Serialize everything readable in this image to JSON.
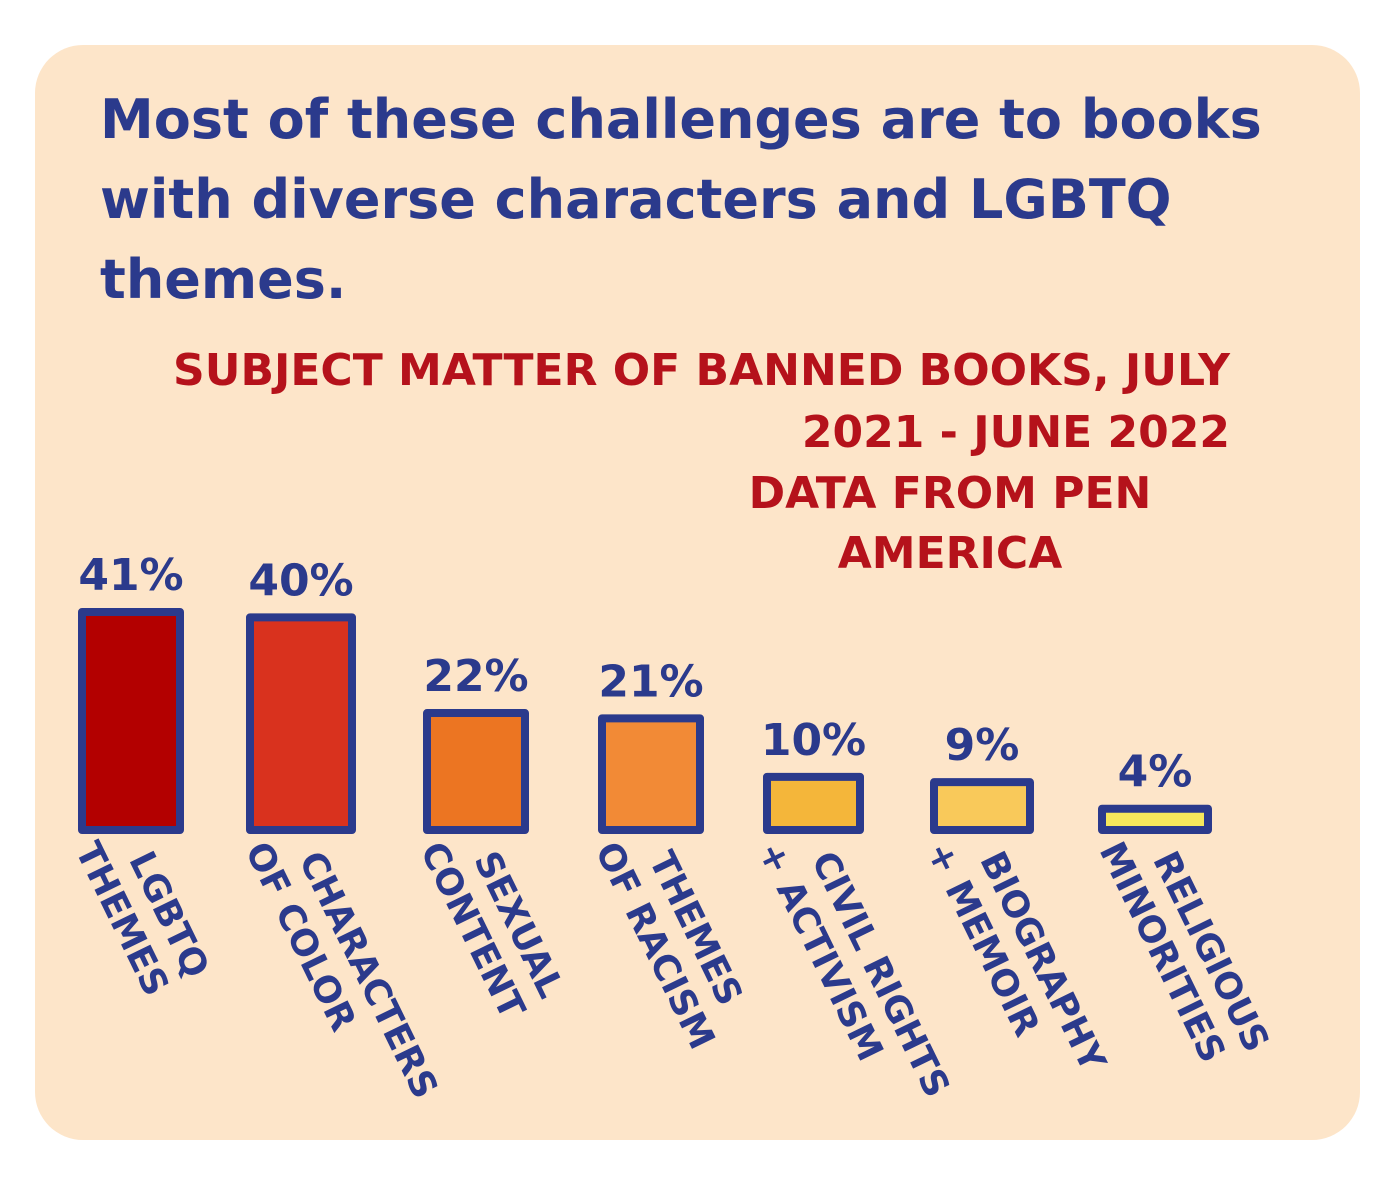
{
  "headline": "Most of these challenges are to books with diverse characters and LGBTQ themes.",
  "chart_data": {
    "type": "bar",
    "title": "SUBJECT MATTER OF BANNED BOOKS, JULY 2021 - JUNE 2022",
    "subtitle": "DATA FROM PEN AMERICA",
    "categories": [
      [
        "LGBTQ",
        "THEMES"
      ],
      [
        "CHARACTERS",
        "OF COLOR"
      ],
      [
        "SEXUAL",
        "CONTENT"
      ],
      [
        "THEMES",
        "OF RACISM"
      ],
      [
        "CIVIL RIGHTS",
        "+ ACTIVISM"
      ],
      [
        "BIOGRAPHY",
        "+ MEMOIR"
      ],
      [
        "RELIGIOUS",
        "MINORITIES"
      ]
    ],
    "values": [
      41,
      40,
      22,
      21,
      10,
      9,
      4
    ],
    "data_labels": [
      "41%",
      "40%",
      "22%",
      "21%",
      "10%",
      "9%",
      "4%"
    ],
    "colors": [
      "#b30000",
      "#d9321e",
      "#ec7522",
      "#f28a36",
      "#f4b63a",
      "#f9c95a",
      "#f6e75c"
    ],
    "outline_color": "#2b3a8c",
    "ylim": [
      0,
      41
    ],
    "grid": false
  }
}
